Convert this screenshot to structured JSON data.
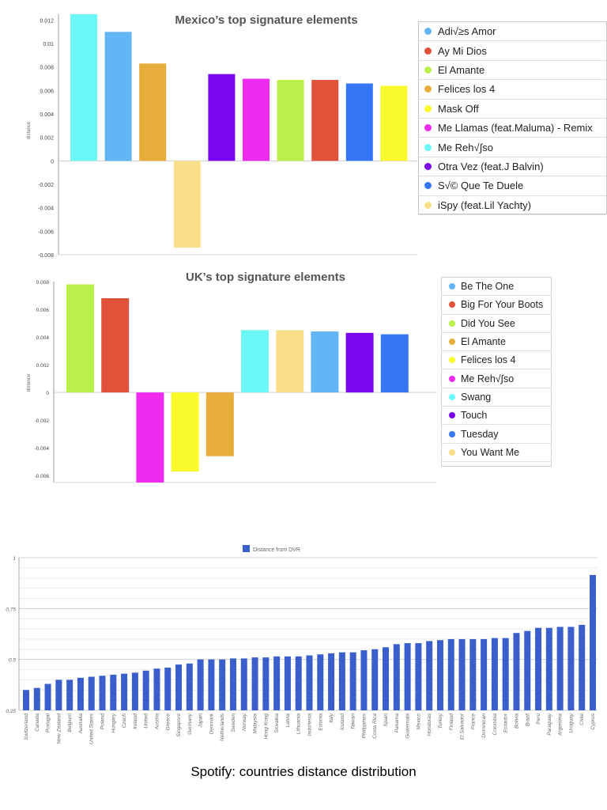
{
  "chart_data": [
    {
      "type": "bar",
      "title": "Mexico’s top signature elements",
      "ylabel": "distance",
      "ylim": [
        -0.008,
        0.0125
      ],
      "yticks": [
        "0.012",
        "0.01",
        "0.008",
        "0.006",
        "0.004",
        "0.002",
        "0",
        "-0.002",
        "-0.004",
        "-0.006",
        "-0.008"
      ],
      "legend_position": "right",
      "categories": [
        "Me Reh√∫so",
        "Adi√≥s Amor",
        "Felices los 4",
        "iSpy (feat.Lil Yachty)",
        "Otra Vez (feat.J Balvin)",
        "Me Llamas (feat.Maluma) - Remix",
        "El Amante",
        "Ay Mi Dios",
        "S√© Que Te Duele",
        "Mask Off"
      ],
      "values": [
        0.0125,
        0.011,
        0.0083,
        -0.0074,
        0.0074,
        0.007,
        0.0069,
        0.0069,
        0.0066,
        0.0064
      ],
      "colors": [
        "#6df8f8",
        "#63b6f5",
        "#e8ac3c",
        "#fadf8b",
        "#7a06f0",
        "#ef2bf0",
        "#b9f14a",
        "#e0523a",
        "#3576f5",
        "#f9f92c"
      ],
      "legend": [
        {
          "label": "Adi√≥s Amor",
          "color": "#63b6f5"
        },
        {
          "label": "Ay Mi Dios",
          "color": "#e0523a"
        },
        {
          "label": "El Amante",
          "color": "#b9f14a"
        },
        {
          "label": "Felices los 4",
          "color": "#e8ac3c"
        },
        {
          "label": "Mask Off",
          "color": "#f9f92c"
        },
        {
          "label": "Me Llamas (feat.Maluma) - Remix",
          "color": "#ef2bf0"
        },
        {
          "label": "Me Reh√∫so",
          "color": "#6df8f8"
        },
        {
          "label": "Otra Vez (feat.J Balvin)",
          "color": "#7a06f0"
        },
        {
          "label": "S√© Que Te Duele",
          "color": "#3576f5"
        },
        {
          "label": "iSpy (feat.Lil Yachty)",
          "color": "#fadf8b"
        }
      ]
    },
    {
      "type": "bar",
      "title": "UK’s top signature elements",
      "ylabel": "distance",
      "ylim": [
        -0.0065,
        0.008
      ],
      "yticks": [
        "0.008",
        "0.006",
        "0.004",
        "0.002",
        "0",
        "-0.002",
        "-0.004",
        "-0.006"
      ],
      "legend_position": "right",
      "categories": [
        "Did You See",
        "Big For Your Boots",
        "Me Reh√∫so",
        "Felices los 4",
        "El Amante",
        "Swang",
        "You Want Me",
        "Be The One",
        "Touch",
        "Tuesday"
      ],
      "values": [
        0.0078,
        0.0068,
        -0.0065,
        -0.0057,
        -0.0046,
        0.0045,
        0.0045,
        0.0044,
        0.0043,
        0.0042
      ],
      "colors": [
        "#b9f14a",
        "#e0523a",
        "#ef2bf0",
        "#f9f92c",
        "#e8ac3c",
        "#6df8f8",
        "#fadf8b",
        "#63b6f5",
        "#7a06f0",
        "#3576f5"
      ],
      "legend": [
        {
          "label": "Be The One",
          "color": "#63b6f5"
        },
        {
          "label": "Big For Your Boots",
          "color": "#e0523a"
        },
        {
          "label": "Did You See",
          "color": "#b9f14a"
        },
        {
          "label": "El Amante",
          "color": "#e8ac3c"
        },
        {
          "label": "Felices los 4",
          "color": "#f9f92c"
        },
        {
          "label": "Me Reh√∫so",
          "color": "#ef2bf0"
        },
        {
          "label": "Swang",
          "color": "#6df8f8"
        },
        {
          "label": "Touch",
          "color": "#7a06f0"
        },
        {
          "label": "Tuesday",
          "color": "#3576f5"
        },
        {
          "label": "You Want Me",
          "color": "#fadf8b"
        }
      ]
    },
    {
      "type": "bar",
      "title": "",
      "ylim": [
        0.25,
        1.0
      ],
      "yticks": [
        "1",
        "0.75",
        "0.5",
        "0.25"
      ],
      "grid": true,
      "legend_position": "top",
      "series": [
        {
          "name": "Distance from DVR",
          "color": "#3a5fcc"
        }
      ],
      "categories": [
        "Switzerland",
        "Canada",
        "Portugal",
        "New Zealand",
        "Belgium",
        "Australia",
        "United States",
        "Poland",
        "Hungary",
        "Czech",
        "Ireland",
        "United",
        "Austria",
        "Greece",
        "Singapore",
        "Germany",
        "Japan",
        "Denmark",
        "Netherlands",
        "Sweden",
        "Norway",
        "Malaysia",
        "Hong Kong",
        "Slovakia",
        "Latvia",
        "Lithuania",
        "Indonesia",
        "Estonia",
        "Italy",
        "Iceland",
        "Taiwan",
        "Philippines",
        "Costa Rica",
        "Spain",
        "Panama",
        "Guatemala",
        "Mexico",
        "Honduras",
        "Turkey",
        "Finland",
        "El Salvador",
        "France",
        "Dominican",
        "Colombia",
        "Ecuador",
        "Bolivia",
        "Brazil",
        "Peru",
        "Paraguay",
        "Argentina",
        "Uruguay",
        "Chile",
        "Cyprus"
      ],
      "values": [
        0.35,
        0.36,
        0.38,
        0.4,
        0.4,
        0.41,
        0.415,
        0.42,
        0.425,
        0.43,
        0.435,
        0.445,
        0.455,
        0.46,
        0.475,
        0.48,
        0.5,
        0.5,
        0.5,
        0.505,
        0.505,
        0.51,
        0.51,
        0.515,
        0.515,
        0.515,
        0.52,
        0.525,
        0.53,
        0.535,
        0.535,
        0.545,
        0.55,
        0.56,
        0.575,
        0.58,
        0.58,
        0.59,
        0.595,
        0.6,
        0.6,
        0.6,
        0.6,
        0.605,
        0.605,
        0.63,
        0.64,
        0.655,
        0.655,
        0.66,
        0.66,
        0.67,
        0.915
      ]
    }
  ],
  "caption": "Spotify: countries distance distribution"
}
